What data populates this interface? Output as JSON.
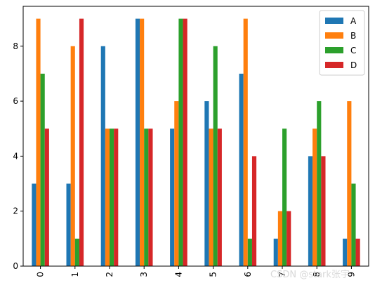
{
  "chart_data": {
    "type": "bar",
    "categories": [
      "0",
      "1",
      "2",
      "3",
      "4",
      "5",
      "6",
      "7",
      "8",
      "9"
    ],
    "series": [
      {
        "name": "A",
        "color": "#1f77b4",
        "values": [
          3,
          3,
          8,
          9,
          5,
          6,
          7,
          1,
          4,
          1
        ]
      },
      {
        "name": "B",
        "color": "#ff7f0e",
        "values": [
          9,
          8,
          5,
          9,
          6,
          5,
          9,
          2,
          5,
          6
        ]
      },
      {
        "name": "C",
        "color": "#2ca02c",
        "values": [
          7,
          1,
          5,
          5,
          9,
          8,
          1,
          5,
          6,
          3
        ]
      },
      {
        "name": "D",
        "color": "#d62728",
        "values": [
          5,
          9,
          5,
          5,
          9,
          5,
          4,
          2,
          4,
          1
        ]
      }
    ],
    "ylim": [
      0,
      9.45
    ],
    "yticks": [
      0,
      2,
      4,
      6,
      8
    ],
    "xtick_rotation": 90,
    "grid": false,
    "legend_position": "upper right"
  },
  "watermark": "CSDN @stark张宇"
}
